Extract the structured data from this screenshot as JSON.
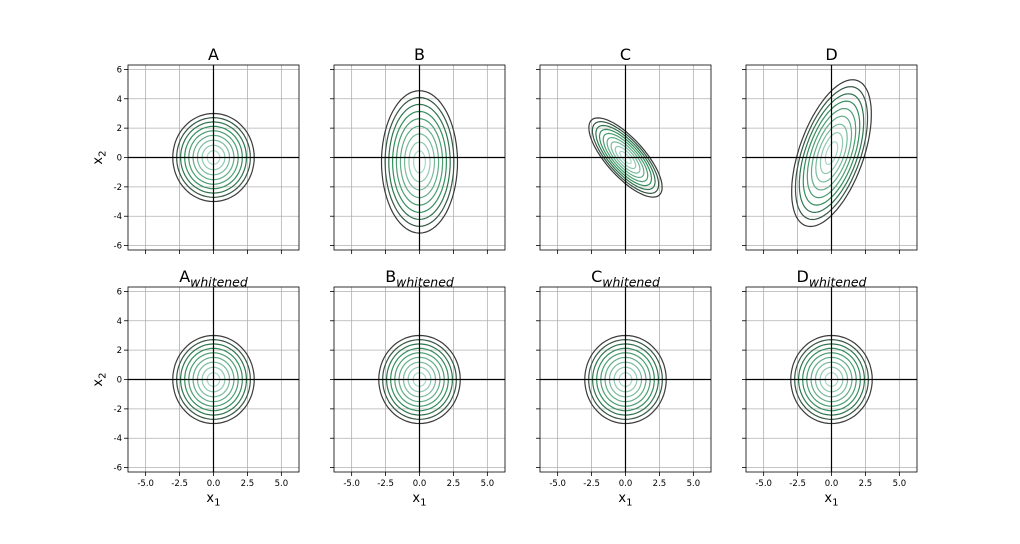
{
  "figure": {
    "background": "#ffffff",
    "grid": true,
    "contour_levels": 9
  },
  "chart_data": [
    {
      "type": "contour",
      "title": "A",
      "title_sub": "",
      "xlim": [
        -6.3,
        6.3
      ],
      "ylim": [
        -6.3,
        6.3
      ],
      "xticks": [],
      "yticks": [
        -6,
        -4,
        -2,
        0,
        2,
        4,
        6
      ],
      "xlabel": "",
      "ylabel": "x",
      "ylabel_sub": "2",
      "density": {
        "mean": [
          0,
          0
        ],
        "cov": [
          [
            1.0,
            0.0
          ],
          [
            0.0,
            1.0
          ]
        ],
        "outer_extent": [
          3.0,
          3.0
        ]
      }
    },
    {
      "type": "contour",
      "title": "B",
      "title_sub": "",
      "xlim": [
        -6.3,
        6.3
      ],
      "ylim": [
        -6.3,
        6.3
      ],
      "xticks": [],
      "yticks": [
        -6,
        -4,
        -2,
        0,
        2,
        4,
        6
      ],
      "xlabel": "",
      "ylabel": "",
      "ylabel_sub": "",
      "density": {
        "mean": [
          0,
          -0.3
        ],
        "cov": [
          [
            0.85,
            0.0
          ],
          [
            0.0,
            2.55
          ]
        ],
        "outer_extent": [
          2.8,
          4.9
        ]
      }
    },
    {
      "type": "contour",
      "title": "C",
      "title_sub": "",
      "xlim": [
        -6.3,
        6.3
      ],
      "ylim": [
        -6.3,
        6.3
      ],
      "xticks": [],
      "yticks": [
        -6,
        -4,
        -2,
        0,
        2,
        4,
        6
      ],
      "xlabel": "",
      "ylabel": "",
      "ylabel_sub": "",
      "density": {
        "mean": [
          0,
          0
        ],
        "cov": [
          [
            1.0,
            -0.75
          ],
          [
            -0.75,
            1.0
          ]
        ],
        "outer_extent": [
          2.7,
          2.8
        ]
      }
    },
    {
      "type": "contour",
      "title": "D",
      "title_sub": "",
      "xlim": [
        -6.3,
        6.3
      ],
      "ylim": [
        -6.3,
        6.3
      ],
      "xticks": [],
      "yticks": [
        -6,
        -4,
        -2,
        0,
        2,
        4,
        6
      ],
      "xlabel": "",
      "ylabel": "",
      "ylabel_sub": "",
      "density": {
        "mean": [
          0,
          0.3
        ],
        "cov": [
          [
            1.0,
            0.9
          ],
          [
            0.9,
            2.9
          ]
        ],
        "outer_extent": [
          3.0,
          5.0
        ]
      }
    },
    {
      "type": "contour",
      "title": "A",
      "title_sub": "whitened",
      "xlim": [
        -6.3,
        6.3
      ],
      "ylim": [
        -6.3,
        6.3
      ],
      "xticks": [
        -5.0,
        -2.5,
        0.0,
        2.5,
        5.0
      ],
      "yticks": [
        -6,
        -4,
        -2,
        0,
        2,
        4,
        6
      ],
      "xlabel": "x",
      "xlabel_sub": "1",
      "ylabel": "x",
      "ylabel_sub": "2",
      "density": {
        "mean": [
          0,
          0
        ],
        "cov": [
          [
            1.0,
            0.0
          ],
          [
            0.0,
            1.0
          ]
        ],
        "outer_extent": [
          3.0,
          3.0
        ]
      }
    },
    {
      "type": "contour",
      "title": "B",
      "title_sub": "whitened",
      "xlim": [
        -6.3,
        6.3
      ],
      "ylim": [
        -6.3,
        6.3
      ],
      "xticks": [
        -5.0,
        -2.5,
        0.0,
        2.5,
        5.0
      ],
      "yticks": [
        -6,
        -4,
        -2,
        0,
        2,
        4,
        6
      ],
      "xlabel": "x",
      "xlabel_sub": "1",
      "ylabel": "",
      "ylabel_sub": "",
      "density": {
        "mean": [
          0,
          0
        ],
        "cov": [
          [
            1.0,
            0.0
          ],
          [
            0.0,
            1.0
          ]
        ],
        "outer_extent": [
          3.0,
          3.0
        ]
      }
    },
    {
      "type": "contour",
      "title": "C",
      "title_sub": "whitened",
      "xlim": [
        -6.3,
        6.3
      ],
      "ylim": [
        -6.3,
        6.3
      ],
      "xticks": [
        -5.0,
        -2.5,
        0.0,
        2.5,
        5.0
      ],
      "yticks": [
        -6,
        -4,
        -2,
        0,
        2,
        4,
        6
      ],
      "xlabel": "x",
      "xlabel_sub": "1",
      "ylabel": "",
      "ylabel_sub": "",
      "density": {
        "mean": [
          0,
          0
        ],
        "cov": [
          [
            1.0,
            0.0
          ],
          [
            0.0,
            1.0
          ]
        ],
        "outer_extent": [
          3.0,
          3.0
        ]
      }
    },
    {
      "type": "contour",
      "title": "D",
      "title_sub": "whitened",
      "xlim": [
        -6.3,
        6.3
      ],
      "ylim": [
        -6.3,
        6.3
      ],
      "xticks": [
        -5.0,
        -2.5,
        0.0,
        2.5,
        5.0
      ],
      "yticks": [
        -6,
        -4,
        -2,
        0,
        2,
        4,
        6
      ],
      "xlabel": "x",
      "xlabel_sub": "1",
      "ylabel": "",
      "ylabel_sub": "",
      "density": {
        "mean": [
          0,
          0
        ],
        "cov": [
          [
            1.0,
            0.0
          ],
          [
            0.0,
            1.0
          ]
        ],
        "outer_extent": [
          3.0,
          3.0
        ]
      }
    }
  ],
  "colors": {
    "grid": "#b0b0b0",
    "axis": "#000000",
    "contour_outer": "#3a3a3a",
    "contour_mid": "#2e8b57",
    "contour_inner": "#a8d8c8"
  }
}
